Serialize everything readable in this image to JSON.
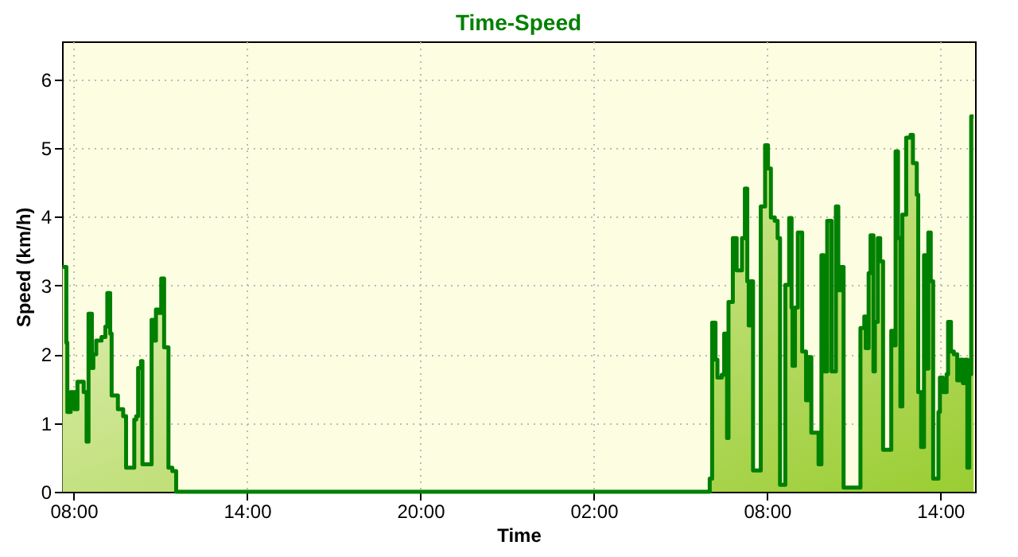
{
  "chart_data": {
    "type": "area",
    "title": "Time-Speed",
    "xlabel": "Time",
    "ylabel": "Speed (km/h)",
    "x": [
      "2000-01-01T07:37",
      "2000-01-01T07:45",
      "2000-01-01T07:47",
      "2000-01-01T07:54",
      "2000-01-01T08:02",
      "2000-01-01T08:08",
      "2000-01-01T08:21",
      "2000-01-01T08:27",
      "2000-01-01T08:31",
      "2000-01-01T08:38",
      "2000-01-01T08:41",
      "2000-01-01T08:47",
      "2000-01-01T08:58",
      "2000-01-01T09:06",
      "2000-01-01T09:10",
      "2000-01-01T09:16",
      "2000-01-01T09:19",
      "2000-01-01T09:25",
      "2000-01-01T09:32",
      "2000-01-01T09:38",
      "2000-01-01T09:43",
      "2000-01-01T09:49",
      "2000-01-01T10:04",
      "2000-01-01T10:06",
      "2000-01-01T10:10",
      "2000-01-01T10:14",
      "2000-01-01T10:20",
      "2000-01-01T10:23",
      "2000-01-01T10:40",
      "2000-01-01T10:42",
      "2000-01-01T10:46",
      "2000-01-01T10:51",
      "2000-01-01T10:56",
      "2000-01-01T11:02",
      "2000-01-01T11:08",
      "2000-01-01T11:14",
      "2000-01-01T11:17",
      "2000-01-01T11:25",
      "2000-01-01T11:33",
      "2000-01-02T05:57",
      "2000-01-02T06:01",
      "2000-01-02T06:06",
      "2000-01-02T06:13",
      "2000-01-02T06:17",
      "2000-01-02T06:26",
      "2000-01-02T06:31",
      "2000-01-02T06:37",
      "2000-01-02T06:40",
      "2000-01-02T06:49",
      "2000-01-02T06:57",
      "2000-01-02T07:08",
      "2000-01-02T07:14",
      "2000-01-02T07:19",
      "2000-01-02T07:22",
      "2000-01-02T07:25",
      "2000-01-02T07:31",
      "2000-01-02T07:47",
      "2000-01-02T07:56",
      "2000-01-02T08:02",
      "2000-01-02T08:08",
      "2000-01-02T08:16",
      "2000-01-02T08:22",
      "2000-01-02T08:27",
      "2000-01-02T08:38",
      "2000-01-02T08:46",
      "2000-01-02T08:51",
      "2000-01-02T08:53",
      "2000-01-02T08:58",
      "2000-01-02T09:04",
      "2000-01-02T09:13",
      "2000-01-02T09:21",
      "2000-01-02T09:26",
      "2000-01-02T09:32",
      "2000-01-02T09:43",
      "2000-01-02T09:47",
      "2000-01-02T09:53",
      "2000-01-02T09:58",
      "2000-01-02T10:05",
      "2000-01-02T10:14",
      "2000-01-02T10:23",
      "2000-01-02T10:28",
      "2000-01-02T10:34",
      "2000-01-02T10:39",
      "2000-01-02T11:14",
      "2000-01-02T11:22",
      "2000-01-02T11:25",
      "2000-01-02T11:31",
      "2000-01-02T11:35",
      "2000-01-02T11:41",
      "2000-01-02T11:44",
      "2000-01-02T11:50",
      "2000-01-02T11:55",
      "2000-01-02T12:01",
      "2000-01-02T12:18",
      "2000-01-02T12:23",
      "2000-01-02T12:27",
      "2000-01-02T12:32",
      "2000-01-02T12:37",
      "2000-01-02T12:41",
      "2000-01-02T12:49",
      "2000-01-02T12:58",
      "2000-01-02T13:03",
      "2000-01-02T13:11",
      "2000-01-02T13:14",
      "2000-01-02T13:20",
      "2000-01-02T13:26",
      "2000-01-02T13:31",
      "2000-01-02T13:35",
      "2000-01-02T13:40",
      "2000-01-02T13:45",
      "2000-01-02T13:56",
      "2000-01-02T13:59",
      "2000-01-02T14:05",
      "2000-01-02T14:13",
      "2000-01-02T14:16",
      "2000-01-02T14:22",
      "2000-01-02T14:28",
      "2000-01-02T14:35",
      "2000-01-02T14:42",
      "2000-01-02T14:47",
      "2000-01-02T14:52",
      "2000-01-02T14:56",
      "2000-01-02T15:00",
      "2000-01-02T15:04",
      "2000-01-02T15:09"
    ],
    "series": [
      {
        "color": "#008000",
        "values": [
          3.27,
          2.17,
          1.16,
          1.45,
          1.2,
          1.6,
          1.45,
          0.73,
          2.59,
          1.8,
          2.0,
          2.2,
          2.25,
          2.4,
          2.89,
          2.3,
          1.4,
          1.4,
          1.2,
          1.2,
          1.1,
          0.35,
          0.35,
          1.05,
          1.1,
          1.8,
          1.9,
          0.4,
          0.4,
          2.5,
          2.2,
          2.65,
          2.6,
          3.1,
          2.1,
          2.1,
          0.35,
          0.3,
          0,
          0,
          0.19,
          2.46,
          1.92,
          1.66,
          1.7,
          2.3,
          0.78,
          2.76,
          3.69,
          3.22,
          3.69,
          4.41,
          3.06,
          2.42,
          3.06,
          0.31,
          4.15,
          5.04,
          4.7,
          3.99,
          3.94,
          3.69,
          0.1,
          3.01,
          3.98,
          2.68,
          1.83,
          2.68,
          3.77,
          2.04,
          1.33,
          1.96,
          0.86,
          0.86,
          0.4,
          3.44,
          1.75,
          3.94,
          1.75,
          4.15,
          2.93,
          3.27,
          0.06,
          2.38,
          2.55,
          2.09,
          3.18,
          3.73,
          1.75,
          2.47,
          3.69,
          3.35,
          0.61,
          2.34,
          2.13,
          4.95,
          3.69,
          1.24,
          4.03,
          5.15,
          5.19,
          4.78,
          4.32,
          1.45,
          0.65,
          3.44,
          1.79,
          3.77,
          3.06,
          0.19,
          1.16,
          1.66,
          1.45,
          1.71,
          2.47,
          2.04,
          2.0,
          1.62,
          1.92,
          1.58,
          1.92,
          0.35,
          1.71,
          5.46,
          5.46
        ]
      }
    ],
    "xlim": [
      "2000-01-01T07:36",
      "2000-01-02T15:12"
    ],
    "xticks": [
      {
        "value": "2000-01-01T08:00",
        "label": "08:00"
      },
      {
        "value": "2000-01-01T14:00",
        "label": "14:00"
      },
      {
        "value": "2000-01-01T20:00",
        "label": "20:00"
      },
      {
        "value": "2000-01-02T02:00",
        "label": "02:00"
      },
      {
        "value": "2000-01-02T08:00",
        "label": "08:00"
      },
      {
        "value": "2000-01-02T14:00",
        "label": "14:00"
      }
    ],
    "ylim": [
      0,
      6.55
    ],
    "yticks": [
      0,
      1,
      2,
      3,
      4,
      5,
      6
    ],
    "grid": true,
    "line_style": "solid",
    "marker": "none"
  }
}
